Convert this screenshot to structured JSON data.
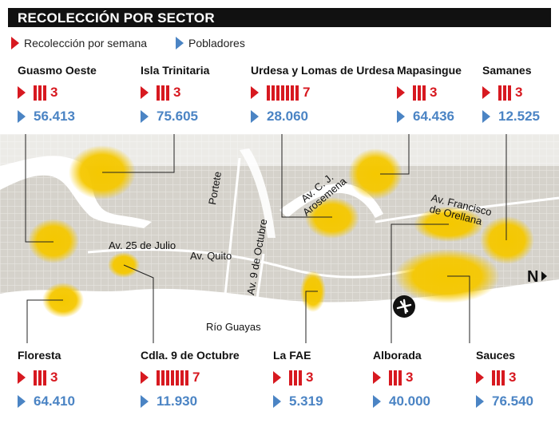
{
  "title": "RECOLECCIÓN POR SECTOR",
  "legend": {
    "frequency_label": "Recolección por semana",
    "population_label": "Pobladores"
  },
  "colors": {
    "frequency": "#d71920",
    "population": "#4b84c4",
    "zone": "#f5c800",
    "water": "#ffffff",
    "land": "#d9d6cf"
  },
  "sectors": [
    {
      "name": "Guasmo Oeste",
      "frequency": 3,
      "frequency_label": "3",
      "population": "56.413"
    },
    {
      "name": "Isla Trinitaria",
      "frequency": 3,
      "frequency_label": "3",
      "population": "75.605"
    },
    {
      "name": "Urdesa y Lomas de Urdesa",
      "frequency": 7,
      "frequency_label": "7",
      "population": "28.060"
    },
    {
      "name": "Mapasingue",
      "frequency": 3,
      "frequency_label": "3",
      "population": "64.436"
    },
    {
      "name": "Samanes",
      "frequency": 3,
      "frequency_label": "3",
      "population": "12.525"
    },
    {
      "name": "Floresta",
      "frequency": 3,
      "frequency_label": "3",
      "population": "64.410"
    },
    {
      "name": "Cdla. 9 de Octubre",
      "frequency": 7,
      "frequency_label": "7",
      "population": "11.930"
    },
    {
      "name": "La FAE",
      "frequency": 3,
      "frequency_label": "3",
      "population": "5.319"
    },
    {
      "name": "Alborada",
      "frequency": 3,
      "frequency_label": "3",
      "population": "40.000"
    },
    {
      "name": "Sauces",
      "frequency": 3,
      "frequency_label": "3",
      "population": "76.540"
    }
  ],
  "map_labels": {
    "av_25_julio": "Av. 25 de Julio",
    "av_quito": "Av. Quito",
    "portete": "Portete",
    "av_9_octubre": "Av. 9 de Octubre",
    "av_cj": "Av. C. J.",
    "arosemena": "Arosemena",
    "av_francisco": "Av. Francisco",
    "de_orellana": "de Orellana",
    "rio_guayas": "Río Guayas",
    "north": "N"
  },
  "icons": {
    "frequency": "triangle-red-icon",
    "population": "triangle-blue-icon",
    "airport": "airplane-icon",
    "north": "north-arrow-icon"
  }
}
